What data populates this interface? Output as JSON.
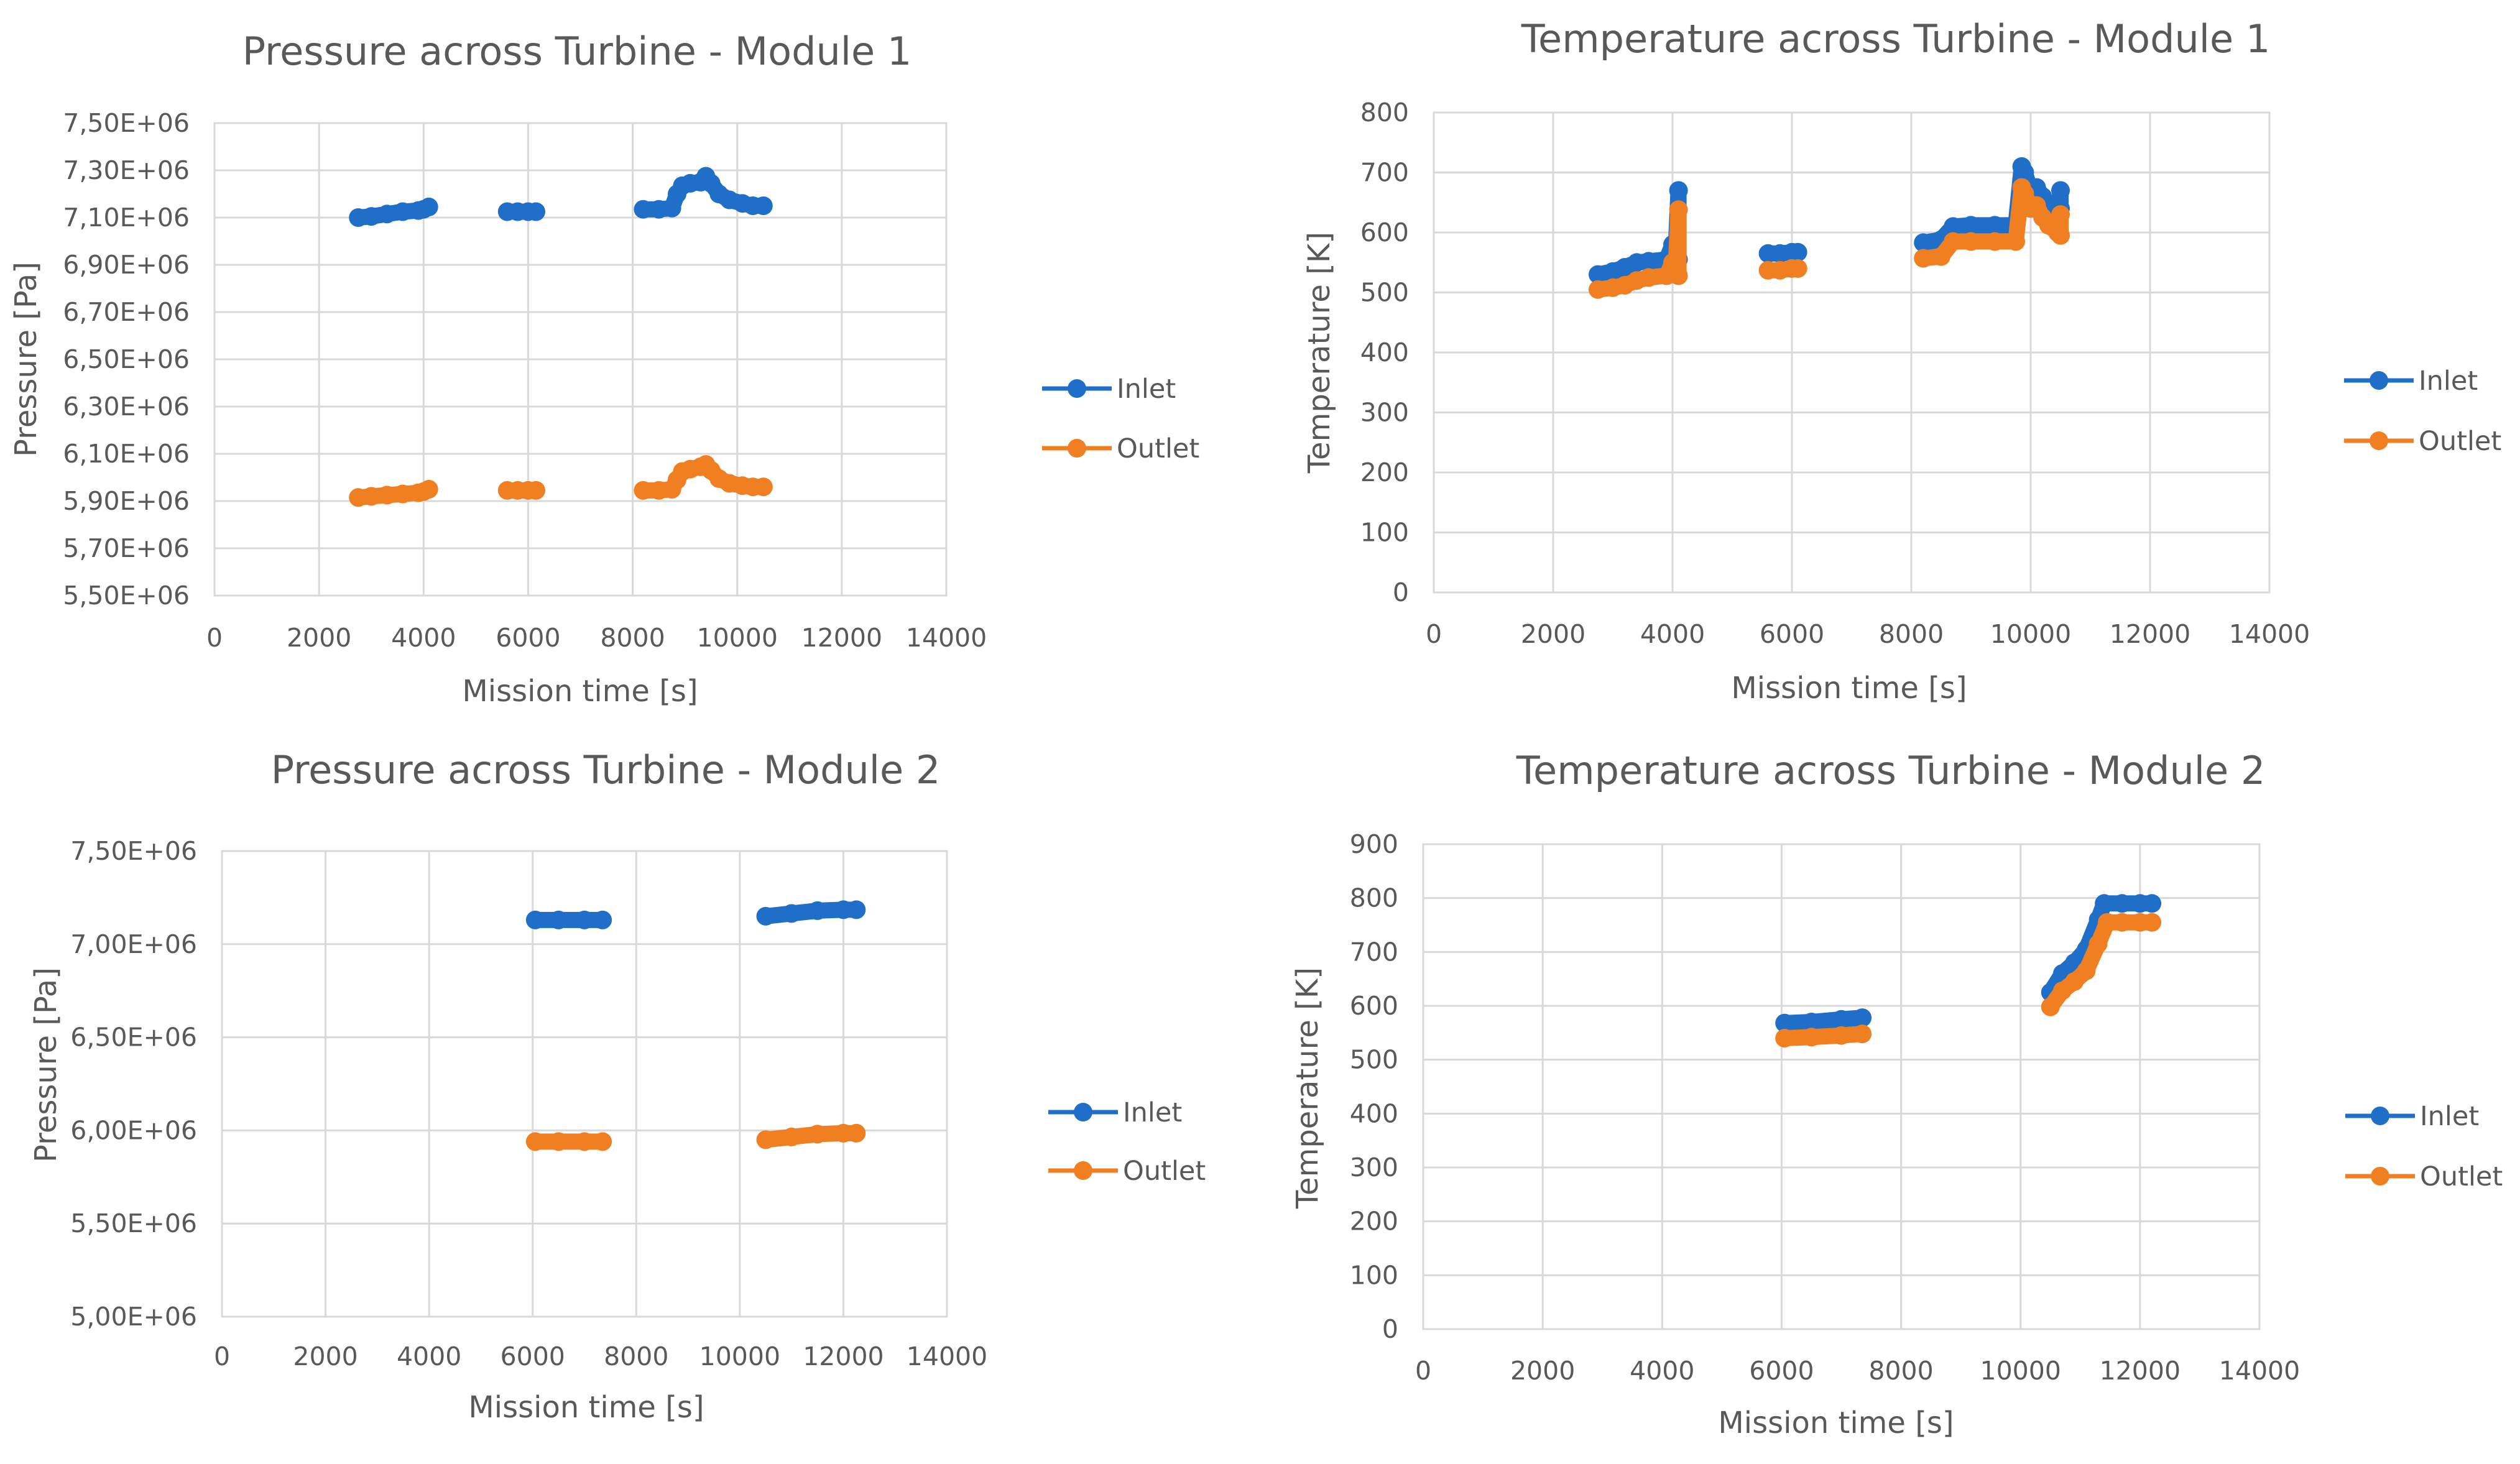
{
  "colors": {
    "inlet": "#1f6fc8",
    "outlet": "#f07f22"
  },
  "chart_data": [
    {
      "type": "scatter",
      "title": "Pressure across Turbine - Module 1",
      "xlabel": "Mission time [s]",
      "ylabel": "Pressure [Pa]",
      "xlim": [
        0,
        14000
      ],
      "ylim": [
        5500000,
        7500000
      ],
      "xticks": [
        0,
        2000,
        4000,
        6000,
        8000,
        10000,
        12000,
        14000
      ],
      "xtick_labels": [
        "0",
        "2000",
        "4000",
        "6000",
        "8000",
        "10000",
        "12000",
        "14000"
      ],
      "yticks": [
        5500000,
        5700000,
        5900000,
        6100000,
        6300000,
        6500000,
        6700000,
        6900000,
        7100000,
        7300000,
        7500000
      ],
      "ytick_labels": [
        "5,50E+06",
        "5,70E+06",
        "5,90E+06",
        "6,10E+06",
        "6,30E+06",
        "6,50E+06",
        "6,70E+06",
        "6,90E+06",
        "7,10E+06",
        "7,30E+06",
        "7,50E+06"
      ],
      "legend": [
        "Inlet",
        "Outlet"
      ],
      "legend_position": "right",
      "series": [
        {
          "name": "Inlet",
          "segments": [
            [
              [
                2750,
                7100000
              ],
              [
                3000,
                7105000
              ],
              [
                3300,
                7115000
              ],
              [
                3600,
                7125000
              ],
              [
                3900,
                7130000
              ],
              [
                4000,
                7135000
              ],
              [
                4100,
                7145000
              ]
            ],
            [
              [
                5600,
                7125000
              ],
              [
                5800,
                7125000
              ],
              [
                6000,
                7125000
              ],
              [
                6150,
                7125000
              ]
            ],
            [
              [
                8200,
                7135000
              ],
              [
                8500,
                7135000
              ],
              [
                8750,
                7140000
              ],
              [
                8850,
                7200000
              ],
              [
                8950,
                7235000
              ],
              [
                9100,
                7245000
              ],
              [
                9300,
                7250000
              ],
              [
                9400,
                7275000
              ],
              [
                9500,
                7245000
              ],
              [
                9650,
                7200000
              ],
              [
                9850,
                7175000
              ],
              [
                10100,
                7160000
              ],
              [
                10300,
                7150000
              ],
              [
                10500,
                7150000
              ]
            ]
          ]
        },
        {
          "name": "Outlet",
          "segments": [
            [
              [
                2750,
                5915000
              ],
              [
                3000,
                5920000
              ],
              [
                3300,
                5925000
              ],
              [
                3600,
                5930000
              ],
              [
                3900,
                5935000
              ],
              [
                4000,
                5940000
              ],
              [
                4100,
                5950000
              ]
            ],
            [
              [
                5600,
                5945000
              ],
              [
                5800,
                5945000
              ],
              [
                6000,
                5945000
              ],
              [
                6150,
                5945000
              ]
            ],
            [
              [
                8200,
                5945000
              ],
              [
                8500,
                5945000
              ],
              [
                8750,
                5950000
              ],
              [
                8850,
                5990000
              ],
              [
                8950,
                6025000
              ],
              [
                9100,
                6035000
              ],
              [
                9300,
                6045000
              ],
              [
                9400,
                6055000
              ],
              [
                9500,
                6030000
              ],
              [
                9650,
                5995000
              ],
              [
                9850,
                5975000
              ],
              [
                10100,
                5965000
              ],
              [
                10300,
                5960000
              ],
              [
                10500,
                5960000
              ]
            ]
          ]
        }
      ]
    },
    {
      "type": "scatter",
      "title": "Temperature across Turbine - Module 1",
      "xlabel": "Mission time [s]",
      "ylabel": "Temperature [K]",
      "xlim": [
        0,
        14000
      ],
      "ylim": [
        0,
        800
      ],
      "xticks": [
        0,
        2000,
        4000,
        6000,
        8000,
        10000,
        12000,
        14000
      ],
      "xtick_labels": [
        "0",
        "2000",
        "4000",
        "6000",
        "8000",
        "10000",
        "12000",
        "14000"
      ],
      "yticks": [
        0,
        100,
        200,
        300,
        400,
        500,
        600,
        700,
        800
      ],
      "ytick_labels": [
        "0",
        "100",
        "200",
        "300",
        "400",
        "500",
        "600",
        "700",
        "800"
      ],
      "legend": [
        "Inlet",
        "Outlet"
      ],
      "legend_position": "right",
      "series": [
        {
          "name": "Inlet",
          "segments": [
            [
              [
                2750,
                530
              ],
              [
                3000,
                535
              ],
              [
                3200,
                542
              ],
              [
                3400,
                550
              ],
              [
                3600,
                552
              ],
              [
                3900,
                555
              ],
              [
                4000,
                580
              ],
              [
                4050,
                560
              ],
              [
                4100,
                670
              ],
              [
                4100,
                555
              ]
            ],
            [
              [
                5600,
                565
              ],
              [
                5800,
                565
              ],
              [
                6000,
                567
              ],
              [
                6100,
                567
              ]
            ],
            [
              [
                8200,
                583
              ],
              [
                8500,
                588
              ],
              [
                8700,
                610
              ],
              [
                9000,
                612
              ],
              [
                9400,
                612
              ],
              [
                9750,
                612
              ],
              [
                9850,
                710
              ],
              [
                9900,
                700
              ],
              [
                10000,
                670
              ],
              [
                10100,
                675
              ],
              [
                10200,
                660
              ],
              [
                10300,
                640
              ],
              [
                10450,
                630
              ],
              [
                10500,
                670
              ],
              [
                10500,
                640
              ]
            ]
          ]
        },
        {
          "name": "Outlet",
          "segments": [
            [
              [
                2750,
                505
              ],
              [
                3000,
                508
              ],
              [
                3200,
                512
              ],
              [
                3400,
                520
              ],
              [
                3600,
                525
              ],
              [
                3900,
                528
              ],
              [
                4000,
                550
              ],
              [
                4050,
                530
              ],
              [
                4100,
                638
              ],
              [
                4100,
                528
              ]
            ],
            [
              [
                5600,
                537
              ],
              [
                5800,
                537
              ],
              [
                6000,
                540
              ],
              [
                6100,
                540
              ]
            ],
            [
              [
                8200,
                557
              ],
              [
                8500,
                560
              ],
              [
                8700,
                585
              ],
              [
                9000,
                585
              ],
              [
                9400,
                585
              ],
              [
                9750,
                585
              ],
              [
                9850,
                675
              ],
              [
                9900,
                665
              ],
              [
                10000,
                640
              ],
              [
                10100,
                645
              ],
              [
                10200,
                625
              ],
              [
                10300,
                612
              ],
              [
                10450,
                600
              ],
              [
                10500,
                630
              ],
              [
                10500,
                595
              ]
            ]
          ]
        }
      ]
    },
    {
      "type": "scatter",
      "title": "Pressure across Turbine - Module 2",
      "xlabel": "Mission time [s]",
      "ylabel": "Pressure [Pa]",
      "xlim": [
        0,
        14000
      ],
      "ylim": [
        5000000,
        7500000
      ],
      "xticks": [
        0,
        2000,
        4000,
        6000,
        8000,
        10000,
        12000,
        14000
      ],
      "xtick_labels": [
        "0",
        "2000",
        "4000",
        "6000",
        "8000",
        "10000",
        "12000",
        "14000"
      ],
      "yticks": [
        5000000,
        5500000,
        6000000,
        6500000,
        7000000,
        7500000
      ],
      "ytick_labels": [
        "5,00E+06",
        "5,50E+06",
        "6,00E+06",
        "6,50E+06",
        "7,00E+06",
        "7,50E+06"
      ],
      "legend": [
        "Inlet",
        "Outlet"
      ],
      "legend_position": "right",
      "series": [
        {
          "name": "Inlet",
          "segments": [
            [
              [
                6050,
                7130000
              ],
              [
                6500,
                7130000
              ],
              [
                7000,
                7130000
              ],
              [
                7350,
                7130000
              ]
            ],
            [
              [
                10500,
                7150000
              ],
              [
                11000,
                7165000
              ],
              [
                11500,
                7180000
              ],
              [
                12000,
                7185000
              ],
              [
                12250,
                7185000
              ]
            ]
          ]
        },
        {
          "name": "Outlet",
          "segments": [
            [
              [
                6050,
                5940000
              ],
              [
                6500,
                5940000
              ],
              [
                7000,
                5940000
              ],
              [
                7350,
                5940000
              ]
            ],
            [
              [
                10500,
                5950000
              ],
              [
                11000,
                5965000
              ],
              [
                11500,
                5980000
              ],
              [
                12000,
                5985000
              ],
              [
                12250,
                5985000
              ]
            ]
          ]
        }
      ]
    },
    {
      "type": "scatter",
      "title": "Temperature across Turbine - Module 2",
      "xlabel": "Mission time [s]",
      "ylabel": "Temperature [K]",
      "xlim": [
        0,
        14000
      ],
      "ylim": [
        0,
        900
      ],
      "xticks": [
        0,
        2000,
        4000,
        6000,
        8000,
        10000,
        12000,
        14000
      ],
      "xtick_labels": [
        "0",
        "2000",
        "4000",
        "6000",
        "8000",
        "10000",
        "12000",
        "14000"
      ],
      "yticks": [
        0,
        100,
        200,
        300,
        400,
        500,
        600,
        700,
        800,
        900
      ],
      "ytick_labels": [
        "0",
        "100",
        "200",
        "300",
        "400",
        "500",
        "600",
        "700",
        "800",
        "900"
      ],
      "legend": [
        "Inlet",
        "Outlet"
      ],
      "legend_position": "right",
      "series": [
        {
          "name": "Inlet",
          "segments": [
            [
              [
                6050,
                568
              ],
              [
                6500,
                570
              ],
              [
                7000,
                575
              ],
              [
                7350,
                578
              ]
            ],
            [
              [
                10500,
                625
              ],
              [
                10700,
                660
              ],
              [
                10900,
                680
              ],
              [
                11100,
                705
              ],
              [
                11300,
                760
              ],
              [
                11400,
                790
              ],
              [
                11700,
                790
              ],
              [
                12000,
                790
              ],
              [
                12200,
                790
              ]
            ]
          ]
        },
        {
          "name": "Outlet",
          "segments": [
            [
              [
                6050,
                540
              ],
              [
                6500,
                542
              ],
              [
                7000,
                545
              ],
              [
                7350,
                548
              ]
            ],
            [
              [
                10500,
                598
              ],
              [
                10700,
                628
              ],
              [
                10900,
                645
              ],
              [
                11100,
                665
              ],
              [
                11300,
                715
              ],
              [
                11450,
                755
              ],
              [
                11700,
                755
              ],
              [
                12000,
                755
              ],
              [
                12200,
                755
              ]
            ]
          ]
        }
      ]
    }
  ]
}
